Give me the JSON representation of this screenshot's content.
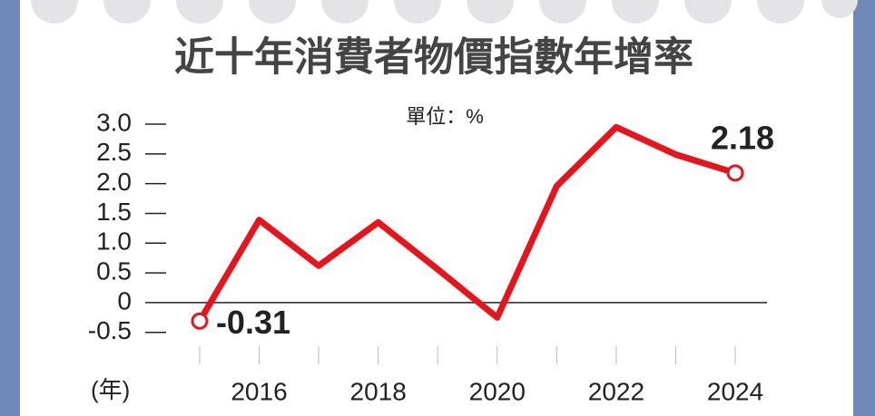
{
  "chart_data": {
    "type": "line",
    "title": "近十年消費者物價指數年增率",
    "unit": "單位：%",
    "x_label": "(年)",
    "x": [
      2015,
      2016,
      2017,
      2018,
      2019,
      2020,
      2021,
      2022,
      2023,
      2024
    ],
    "series": [
      {
        "name": "消費者物價指數年增率",
        "color": "#e8141c",
        "values": [
          -0.31,
          1.39,
          0.62,
          1.35,
          0.56,
          -0.25,
          1.96,
          2.95,
          2.49,
          2.18
        ],
        "value_labels": [
          "-0.31",
          null,
          null,
          null,
          null,
          null,
          null,
          null,
          null,
          "2.18"
        ]
      }
    ],
    "xlim": [
      2014.2,
      2024.8
    ],
    "xticks": [
      2016,
      2018,
      2020,
      2022,
      2024
    ],
    "ylim": [
      -0.9,
      3.3
    ],
    "yticks": [
      {
        "value": 3,
        "label": "3.0"
      },
      {
        "value": 2.5,
        "label": "2.5"
      },
      {
        "value": 2,
        "label": "2.0"
      },
      {
        "value": 1.5,
        "label": "1.5"
      },
      {
        "value": 1,
        "label": "1.0"
      },
      {
        "value": 0.5,
        "label": "0.5"
      },
      0,
      {
        "value": -0.5,
        "label": "-0.5"
      }
    ]
  }
}
